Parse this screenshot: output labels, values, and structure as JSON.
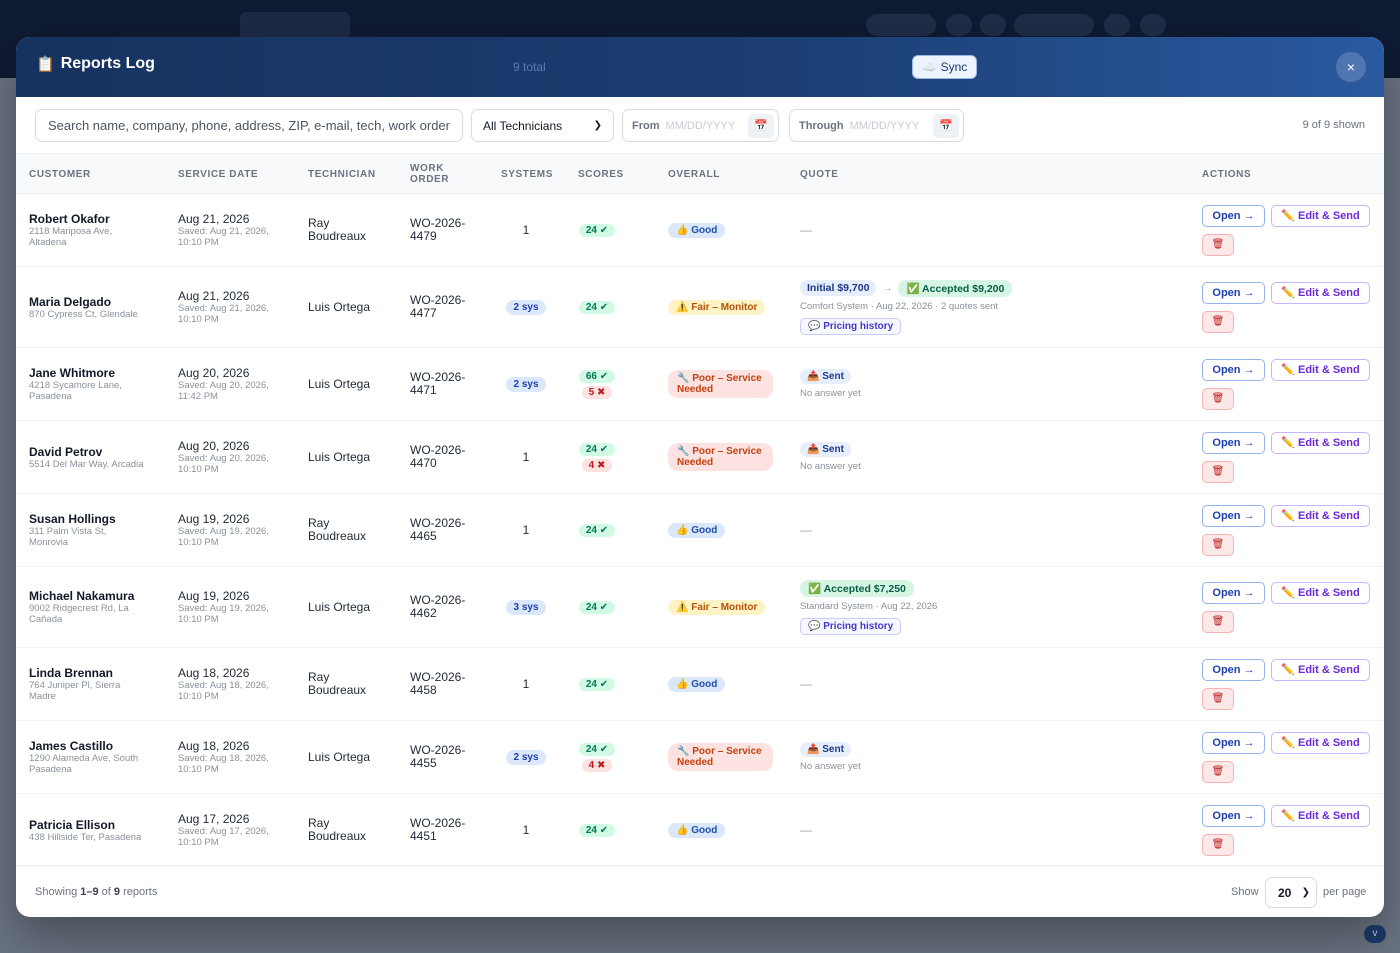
{
  "modal": {
    "title": "Reports Log",
    "total": "9 total",
    "sync_label": "Sync",
    "close_label": "×"
  },
  "filters": {
    "search_placeholder": "Search name, company, phone, address, ZIP, e-mail, tech, work order…",
    "technician_value": "All Technicians",
    "from_label": "From",
    "from_placeholder": "MM/DD/YYYY",
    "through_label": "Through",
    "through_placeholder": "MM/DD/YYYY",
    "shown": "9 of 9 shown"
  },
  "columns": {
    "customer": "CUSTOMER",
    "service_date": "SERVICE DATE",
    "technician": "TECHNICIAN",
    "work_order_1": "WORK",
    "work_order_2": "ORDER",
    "systems": "SYSTEMS",
    "scores": "SCORES",
    "overall": "OVERALL",
    "quote": "QUOTE",
    "actions": "ACTIONS"
  },
  "actions": {
    "open": "Open →",
    "edit_send": "✏️ Edit & Send",
    "delete_icon": "🗑"
  },
  "rows": [
    {
      "name": "Robert Okafor",
      "addr1": "2118 Mariposa Ave,",
      "addr2": "Altadena",
      "date": "Aug 21, 2026",
      "saved1": "Saved: Aug 21, 2026,",
      "saved2": "10:10 PM",
      "tech1": "Ray",
      "tech2": "Boudreaux",
      "wo1": "WO-2026-",
      "wo2": "4479",
      "systems": "1",
      "sys_pill": false,
      "score_ok": "24 ✔",
      "score_bad": "",
      "overall": "👍 Good",
      "overall_type": "good",
      "quote_type": "none",
      "quote_dash": "—"
    },
    {
      "name": "Maria Delgado",
      "addr1": "870 Cypress Ct, Glendale",
      "addr2": "",
      "date": "Aug 21, 2026",
      "saved1": "Saved: Aug 21, 2026,",
      "saved2": "10:10 PM",
      "tech1": "Luis Ortega",
      "tech2": "",
      "wo1": "WO-2026-",
      "wo2": "4477",
      "systems": "2 sys",
      "sys_pill": true,
      "score_ok": "24 ✔",
      "score_bad": "",
      "overall": "⚠️ Fair – Monitor",
      "overall_type": "fair",
      "quote_type": "initial",
      "quote_initial": "Initial $9,700",
      "quote_arrow": "→",
      "quote_accepted": "✅ Accepted $9,200",
      "quote_sub": "Comfort System · Aug 22, 2026 · 2 quotes sent",
      "quote_hist": "💬 Pricing history"
    },
    {
      "name": "Jane Whitmore",
      "addr1": "4218 Sycamore Lane,",
      "addr2": "Pasadena",
      "date": "Aug 20, 2026",
      "saved1": "Saved: Aug 20, 2026,",
      "saved2": "11:42 PM",
      "tech1": "Luis Ortega",
      "tech2": "",
      "wo1": "WO-2026-",
      "wo2": "4471",
      "systems": "2 sys",
      "sys_pill": true,
      "score_ok": "66 ✔",
      "score_bad": "5 ✖",
      "overall": "🔧 Poor – Service Needed",
      "overall_type": "poor",
      "quote_type": "sent",
      "quote_sent": "📤 Sent",
      "quote_sub": "No answer yet"
    },
    {
      "name": "David Petrov",
      "addr1": "5514 Del Mar Way, Arcadia",
      "addr2": "",
      "date": "Aug 20, 2026",
      "saved1": "Saved: Aug 20, 2026,",
      "saved2": "10:10 PM",
      "tech1": "Luis Ortega",
      "tech2": "",
      "wo1": "WO-2026-",
      "wo2": "4470",
      "systems": "1",
      "sys_pill": false,
      "score_ok": "24 ✔",
      "score_bad": "4 ✖",
      "overall": "🔧 Poor – Service Needed",
      "overall_type": "poor",
      "quote_type": "sent",
      "quote_sent": "📤 Sent",
      "quote_sub": "No answer yet"
    },
    {
      "name": "Susan Hollings",
      "addr1": "311 Palm Vista St,",
      "addr2": "Monrovia",
      "date": "Aug 19, 2026",
      "saved1": "Saved: Aug 19, 2026,",
      "saved2": "10:10 PM",
      "tech1": "Ray",
      "tech2": "Boudreaux",
      "wo1": "WO-2026-",
      "wo2": "4465",
      "systems": "1",
      "sys_pill": false,
      "score_ok": "24 ✔",
      "score_bad": "",
      "overall": "👍 Good",
      "overall_type": "good",
      "quote_type": "none",
      "quote_dash": "—"
    },
    {
      "name": "Michael Nakamura",
      "addr1": "9002 Ridgecrest Rd, La",
      "addr2": "Cañada",
      "date": "Aug 19, 2026",
      "saved1": "Saved: Aug 19, 2026,",
      "saved2": "10:10 PM",
      "tech1": "Luis Ortega",
      "tech2": "",
      "wo1": "WO-2026-",
      "wo2": "4462",
      "systems": "3 sys",
      "sys_pill": true,
      "score_ok": "24 ✔",
      "score_bad": "",
      "overall": "⚠️ Fair – Monitor",
      "overall_type": "fair",
      "quote_type": "accepted",
      "quote_accepted": "✅ Accepted $7,250",
      "quote_sub": "Standard System · Aug 22, 2026",
      "quote_hist": "💬 Pricing history"
    },
    {
      "name": "Linda Brennan",
      "addr1": "764 Juniper Pl, Sierra",
      "addr2": "Madre",
      "date": "Aug 18, 2026",
      "saved1": "Saved: Aug 18, 2026,",
      "saved2": "10:10 PM",
      "tech1": "Ray",
      "tech2": "Boudreaux",
      "wo1": "WO-2026-",
      "wo2": "4458",
      "systems": "1",
      "sys_pill": false,
      "score_ok": "24 ✔",
      "score_bad": "",
      "overall": "👍 Good",
      "overall_type": "good",
      "quote_type": "none",
      "quote_dash": "—"
    },
    {
      "name": "James Castillo",
      "addr1": "1290 Alameda Ave, South",
      "addr2": "Pasadena",
      "date": "Aug 18, 2026",
      "saved1": "Saved: Aug 18, 2026,",
      "saved2": "10:10 PM",
      "tech1": "Luis Ortega",
      "tech2": "",
      "wo1": "WO-2026-",
      "wo2": "4455",
      "systems": "2 sys",
      "sys_pill": true,
      "score_ok": "24 ✔",
      "score_bad": "4 ✖",
      "overall": "🔧 Poor – Service Needed",
      "overall_type": "poor",
      "quote_type": "sent",
      "quote_sent": "📤 Sent",
      "quote_sub": "No answer yet"
    },
    {
      "name": "Patricia Ellison",
      "addr1": "438 Hillside Ter, Pasadena",
      "addr2": "",
      "date": "Aug 17, 2026",
      "saved1": "Saved: Aug 17, 2026,",
      "saved2": "10:10 PM",
      "tech1": "Ray",
      "tech2": "Boudreaux",
      "wo1": "WO-2026-",
      "wo2": "4451",
      "systems": "1",
      "sys_pill": false,
      "score_ok": "24 ✔",
      "score_bad": "",
      "overall": "👍 Good",
      "overall_type": "good",
      "quote_type": "none",
      "quote_dash": "—"
    }
  ],
  "footer": {
    "showing_prefix": "Showing ",
    "showing_range": "1–9",
    "showing_mid": " of ",
    "showing_total": "9",
    "showing_suffix": " reports",
    "show_label": "Show",
    "per_page_value": "20",
    "per_page_label": "per page"
  }
}
